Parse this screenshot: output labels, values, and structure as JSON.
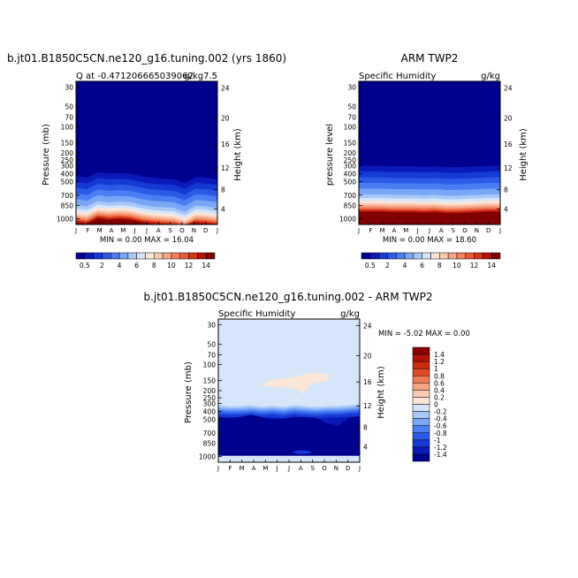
{
  "chart_data": [
    {
      "type": "heatmap",
      "id": "model",
      "title": "b.jt01.B1850C5CN.ne120_g16.tuning.002 (yrs 1860)",
      "left_label": "Q  at  -0.471206665039062",
      "right_label": "g/kg7.5",
      "ylabel": "Pressure (mb)",
      "ylabel2": "Height (km)",
      "x_ticks": [
        "J",
        "F",
        "M",
        "A",
        "M",
        "J",
        "J",
        "A",
        "S",
        "O",
        "N",
        "D",
        "J"
      ],
      "p_ticks": [
        "30",
        "50",
        "70",
        "100",
        "150",
        "200",
        "250",
        "300",
        "400",
        "500",
        "700",
        "850",
        "1000"
      ],
      "h_ticks": [
        "24",
        "20",
        "16",
        "12",
        "8",
        "4"
      ],
      "stats": "MIN =    0.00 MAX =   16.04",
      "min": 0.0,
      "max": 16.04,
      "moisture_top_mb": [
        430,
        450,
        380,
        400,
        390,
        400,
        430,
        450,
        460,
        470,
        520,
        440,
        450,
        470
      ]
    },
    {
      "type": "heatmap",
      "id": "obs",
      "title": "ARM TWP2",
      "left_label": "Specific Humidity",
      "right_label": "g/kg",
      "ylabel": "pressure level",
      "ylabel2": "Height (km)",
      "x_ticks": [
        "J",
        "F",
        "M",
        "A",
        "M",
        "J",
        "J",
        "A",
        "S",
        "O",
        "N",
        "D",
        "J"
      ],
      "p_ticks": [
        "30",
        "50",
        "70",
        "100",
        "150",
        "200",
        "250",
        "300",
        "400",
        "500",
        "700",
        "850",
        "1000"
      ],
      "h_ticks": [
        "24",
        "20",
        "16",
        "12",
        "8",
        "4"
      ],
      "stats": "MIN =    0.00 MAX =   18.60",
      "min": 0.0,
      "max": 18.6,
      "moisture_top_mb": [
        300,
        300,
        300,
        305,
        305,
        305,
        310,
        305,
        315,
        315,
        310,
        305,
        300,
        300
      ]
    },
    {
      "type": "heatmap",
      "id": "diff",
      "title": "b.jt01.B1850C5CN.ne120_g16.tuning.002 - ARM TWP2",
      "left_label": "Specific Humidity",
      "right_label": "g/kg",
      "ylabel": "Pressure (mb)",
      "ylabel2": "Height (km)",
      "x_ticks": [
        "J",
        "F",
        "M",
        "A",
        "M",
        "J",
        "J",
        "A",
        "S",
        "O",
        "N",
        "D",
        "J"
      ],
      "p_ticks": [
        "30",
        "50",
        "70",
        "100",
        "150",
        "200",
        "250",
        "300",
        "400",
        "500",
        "700",
        "850",
        "1000"
      ],
      "h_ticks": [
        "24",
        "20",
        "16",
        "12",
        "8",
        "4"
      ],
      "stats": "MIN =   -5.02 MAX =    0.00",
      "min": -5.02,
      "max": 0.0,
      "moisture_top_mb": [
        320,
        330,
        330,
        320,
        335,
        325,
        340,
        320,
        330,
        340,
        330,
        330,
        320,
        310
      ],
      "deep_top_mb": [
        470,
        480,
        470,
        440,
        470,
        500,
        490,
        470,
        470,
        480,
        550,
        590,
        480,
        460
      ]
    }
  ],
  "colorbar_bottom": {
    "labels": [
      "0.5",
      "2",
      "4",
      "6",
      "8",
      "10",
      "12",
      "14"
    ],
    "colors": [
      "#00008f",
      "#0a1ab8",
      "#1638d4",
      "#2a5ae6",
      "#4a7ef2",
      "#7aa6f6",
      "#a8c8f8",
      "#d6e6fa",
      "#fbe6d8",
      "#f9c9b0",
      "#f6a584",
      "#f0805a",
      "#e85a36",
      "#d43418",
      "#b01508",
      "#800000"
    ]
  },
  "colorbar_diff": {
    "labels": [
      "1.4",
      "1.2",
      "1",
      "0.8",
      "0.6",
      "0.4",
      "0.2",
      "0",
      "-0.2",
      "-0.4",
      "-0.6",
      "-0.8",
      "-1",
      "-1.2",
      "-1.4"
    ],
    "colors": [
      "#8a0000",
      "#b01508",
      "#cc2a12",
      "#e04a28",
      "#ee7a56",
      "#f6a584",
      "#f9c9b0",
      "#fbe6d8",
      "#d6e6fa",
      "#a8c8f8",
      "#7aa6f6",
      "#4a7ef2",
      "#2a5ae6",
      "#1638d4",
      "#0a1ab8",
      "#00008f"
    ]
  }
}
